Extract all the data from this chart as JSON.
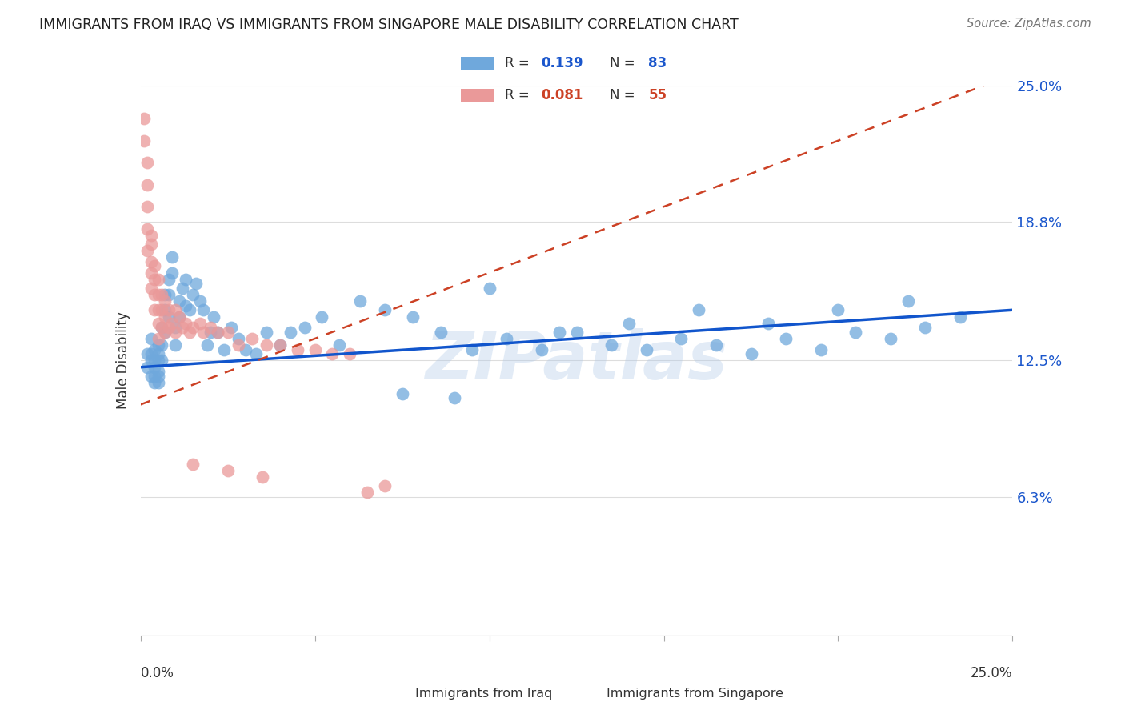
{
  "title": "IMMIGRANTS FROM IRAQ VS IMMIGRANTS FROM SINGAPORE MALE DISABILITY CORRELATION CHART",
  "source": "Source: ZipAtlas.com",
  "ylabel": "Male Disability",
  "x_lim": [
    0.0,
    0.25
  ],
  "y_lim": [
    0.0,
    0.25
  ],
  "iraq_R": 0.139,
  "iraq_N": 83,
  "singapore_R": 0.081,
  "singapore_N": 55,
  "iraq_color": "#6fa8dc",
  "singapore_color": "#ea9999",
  "iraq_line_color": "#1155cc",
  "singapore_line_color": "#cc4125",
  "iraq_x": [
    0.002,
    0.002,
    0.003,
    0.003,
    0.003,
    0.003,
    0.004,
    0.004,
    0.004,
    0.004,
    0.004,
    0.005,
    0.005,
    0.005,
    0.005,
    0.005,
    0.005,
    0.006,
    0.006,
    0.006,
    0.007,
    0.007,
    0.007,
    0.008,
    0.008,
    0.008,
    0.009,
    0.009,
    0.01,
    0.01,
    0.011,
    0.011,
    0.012,
    0.013,
    0.013,
    0.014,
    0.015,
    0.016,
    0.017,
    0.018,
    0.019,
    0.02,
    0.021,
    0.022,
    0.024,
    0.026,
    0.028,
    0.03,
    0.033,
    0.036,
    0.04,
    0.043,
    0.047,
    0.052,
    0.057,
    0.063,
    0.07,
    0.078,
    0.086,
    0.095,
    0.105,
    0.115,
    0.125,
    0.135,
    0.145,
    0.155,
    0.165,
    0.175,
    0.185,
    0.195,
    0.205,
    0.215,
    0.225,
    0.235,
    0.1,
    0.12,
    0.14,
    0.16,
    0.18,
    0.2,
    0.22,
    0.075,
    0.09
  ],
  "iraq_y": [
    0.128,
    0.122,
    0.135,
    0.128,
    0.118,
    0.125,
    0.13,
    0.122,
    0.118,
    0.125,
    0.115,
    0.132,
    0.128,
    0.12,
    0.115,
    0.125,
    0.118,
    0.14,
    0.132,
    0.125,
    0.155,
    0.148,
    0.138,
    0.162,
    0.155,
    0.145,
    0.172,
    0.165,
    0.14,
    0.132,
    0.152,
    0.145,
    0.158,
    0.162,
    0.15,
    0.148,
    0.155,
    0.16,
    0.152,
    0.148,
    0.132,
    0.138,
    0.145,
    0.138,
    0.13,
    0.14,
    0.135,
    0.13,
    0.128,
    0.138,
    0.132,
    0.138,
    0.14,
    0.145,
    0.132,
    0.152,
    0.148,
    0.145,
    0.138,
    0.13,
    0.135,
    0.13,
    0.138,
    0.132,
    0.13,
    0.135,
    0.132,
    0.128,
    0.135,
    0.13,
    0.138,
    0.135,
    0.14,
    0.145,
    0.158,
    0.138,
    0.142,
    0.148,
    0.142,
    0.148,
    0.152,
    0.11,
    0.108
  ],
  "singapore_x": [
    0.001,
    0.001,
    0.002,
    0.002,
    0.002,
    0.002,
    0.002,
    0.003,
    0.003,
    0.003,
    0.003,
    0.003,
    0.004,
    0.004,
    0.004,
    0.004,
    0.005,
    0.005,
    0.005,
    0.005,
    0.005,
    0.006,
    0.006,
    0.006,
    0.007,
    0.007,
    0.007,
    0.008,
    0.008,
    0.009,
    0.01,
    0.01,
    0.011,
    0.012,
    0.013,
    0.014,
    0.015,
    0.017,
    0.018,
    0.02,
    0.022,
    0.025,
    0.028,
    0.032,
    0.036,
    0.04,
    0.045,
    0.05,
    0.055,
    0.06,
    0.065,
    0.07,
    0.035,
    0.025,
    0.015
  ],
  "singapore_y": [
    0.235,
    0.225,
    0.215,
    0.205,
    0.195,
    0.185,
    0.175,
    0.182,
    0.178,
    0.17,
    0.165,
    0.158,
    0.168,
    0.162,
    0.155,
    0.148,
    0.162,
    0.155,
    0.148,
    0.142,
    0.135,
    0.155,
    0.148,
    0.14,
    0.152,
    0.145,
    0.138,
    0.148,
    0.14,
    0.142,
    0.148,
    0.138,
    0.145,
    0.14,
    0.142,
    0.138,
    0.14,
    0.142,
    0.138,
    0.14,
    0.138,
    0.138,
    0.132,
    0.135,
    0.132,
    0.132,
    0.13,
    0.13,
    0.128,
    0.128,
    0.065,
    0.068,
    0.072,
    0.075,
    0.078
  ]
}
